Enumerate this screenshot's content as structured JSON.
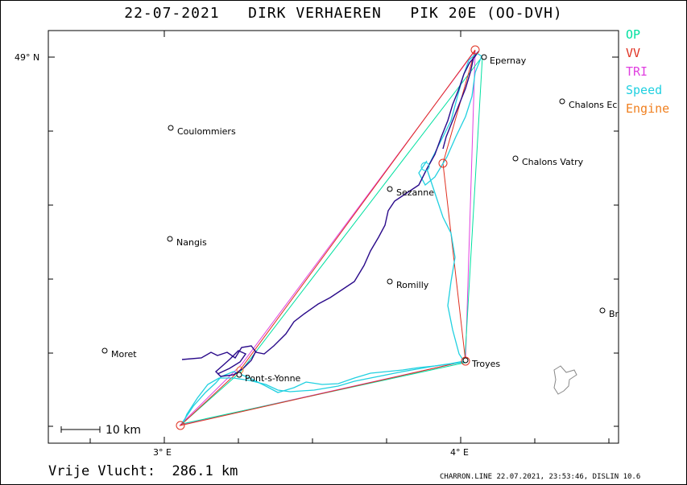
{
  "title": "22-07-2021   DIRK VERHAEREN   PIK 20E (OO-DVH)",
  "legend": [
    {
      "label": "OP",
      "color": "#00e0a0"
    },
    {
      "label": "VV",
      "color": "#e03020"
    },
    {
      "label": "TRI",
      "color": "#e040e0"
    },
    {
      "label": "Speed",
      "color": "#20d0e0"
    },
    {
      "label": "Engine",
      "color": "#f08020"
    }
  ],
  "axis": {
    "lat_label": "49° N",
    "lon_labels": [
      "3° E",
      "4° E"
    ]
  },
  "scale_label": "10 km",
  "places": [
    {
      "name": "Epernay"
    },
    {
      "name": "Chalons Ec"
    },
    {
      "name": "Coulommiers"
    },
    {
      "name": "Chalons Vatry"
    },
    {
      "name": "Sezanne"
    },
    {
      "name": "Nangis"
    },
    {
      "name": "Romilly"
    },
    {
      "name": "Br"
    },
    {
      "name": "Moret"
    },
    {
      "name": "Troyes"
    },
    {
      "name": "Pont-s-Yonne"
    }
  ],
  "score": "Vrije Vlucht:  286.1 km",
  "footer": "CHARRON.LINE 22.07.2021, 23:53:46, DISLIN 10.6"
}
